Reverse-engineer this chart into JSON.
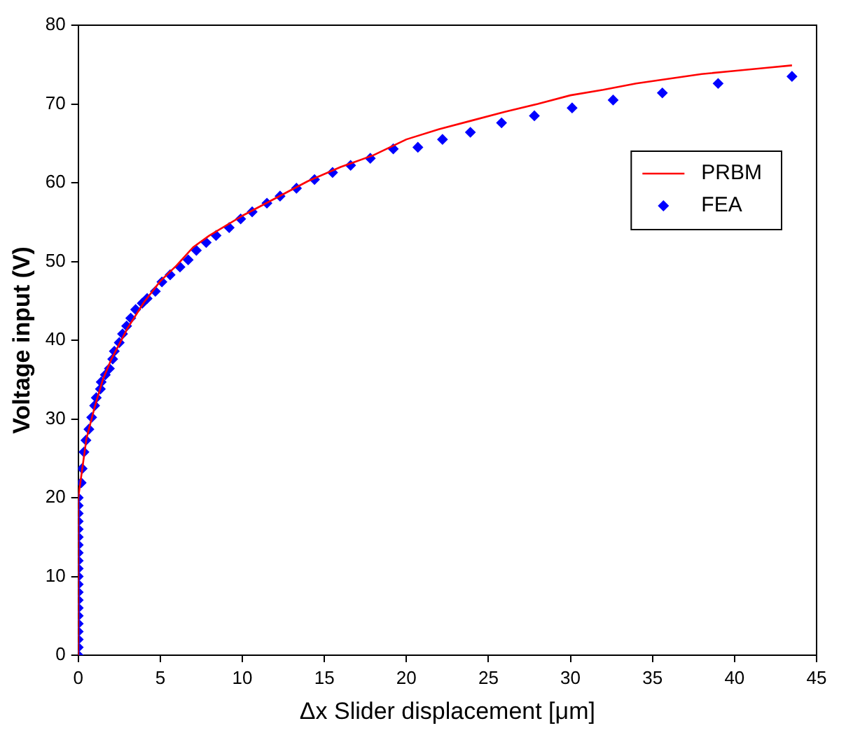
{
  "chart_data": {
    "type": "line",
    "xlabel": "Δx Slider displacement [μm]",
    "ylabel": "Voltage input (V)",
    "xlim": [
      0,
      45
    ],
    "xticks": [
      0,
      5,
      10,
      15,
      20,
      25,
      30,
      35,
      40,
      45
    ],
    "ylim": [
      0,
      80
    ],
    "yticks": [
      0,
      10,
      20,
      30,
      40,
      50,
      60,
      70,
      80
    ],
    "grid": false,
    "legend": "top right",
    "series": [
      {
        "name": "PRBM",
        "type": "line",
        "color": "#ff0000",
        "marker": "none",
        "line_style": "solid",
        "x": [
          0,
          0,
          0.2,
          0.5,
          1,
          1.5,
          2,
          3,
          4,
          5,
          6,
          7,
          8,
          10,
          12,
          14,
          16,
          18,
          20,
          22,
          24,
          26,
          28,
          30,
          32,
          34,
          36,
          38,
          40,
          42,
          43.5
        ],
        "values": [
          0,
          20,
          23,
          27.5,
          31.5,
          35,
          37.5,
          41.5,
          44.8,
          47.5,
          49.5,
          51.8,
          53.3,
          55.8,
          58,
          60.2,
          62,
          63.5,
          65.5,
          66.8,
          67.9,
          69,
          70,
          71.1,
          71.8,
          72.6,
          73.2,
          73.8,
          74.2,
          74.6,
          74.9
        ]
      },
      {
        "name": "FEA",
        "type": "scatter",
        "color": "#0000ff",
        "marker": "diamond",
        "x": [
          0,
          0,
          0,
          0,
          0,
          0,
          0,
          0,
          0,
          0,
          0,
          0,
          0,
          0,
          0,
          0,
          0,
          0,
          0,
          0,
          0,
          0.18,
          0.24,
          0.35,
          0.47,
          0.65,
          0.82,
          1.0,
          1.1,
          1.35,
          1.4,
          1.65,
          1.9,
          2.1,
          2.2,
          2.5,
          2.7,
          2.95,
          3.2,
          3.5,
          3.9,
          4.2,
          4.7,
          5.1,
          5.6,
          6.2,
          6.7,
          7.2,
          7.8,
          8.4,
          9.2,
          9.9,
          10.6,
          11.5,
          12.3,
          13.3,
          14.4,
          15.5,
          16.6,
          17.8,
          19.2,
          20.7,
          22.2,
          23.9,
          25.8,
          27.8,
          30.1,
          32.6,
          35.6,
          39.0,
          43.5
        ],
        "values": [
          0,
          1,
          2,
          3,
          4,
          5,
          6,
          7,
          8,
          9,
          10,
          11,
          12,
          13,
          14,
          15,
          16,
          17,
          18,
          19,
          20,
          21.9,
          23.7,
          25.8,
          27.3,
          28.7,
          30.2,
          31.7,
          32.7,
          33.8,
          34.7,
          35.6,
          36.4,
          37.6,
          38.6,
          39.7,
          40.8,
          41.8,
          42.8,
          43.9,
          44.7,
          45.3,
          46.2,
          47.4,
          48.3,
          49.3,
          50.2,
          51.4,
          52.4,
          53.3,
          54.3,
          55.4,
          56.3,
          57.4,
          58.3,
          59.3,
          60.4,
          61.3,
          62.2,
          63.1,
          64.3,
          64.5,
          65.5,
          66.4,
          67.6,
          68.5,
          69.5,
          70.5,
          71.4,
          72.6,
          73.5
        ]
      }
    ]
  }
}
